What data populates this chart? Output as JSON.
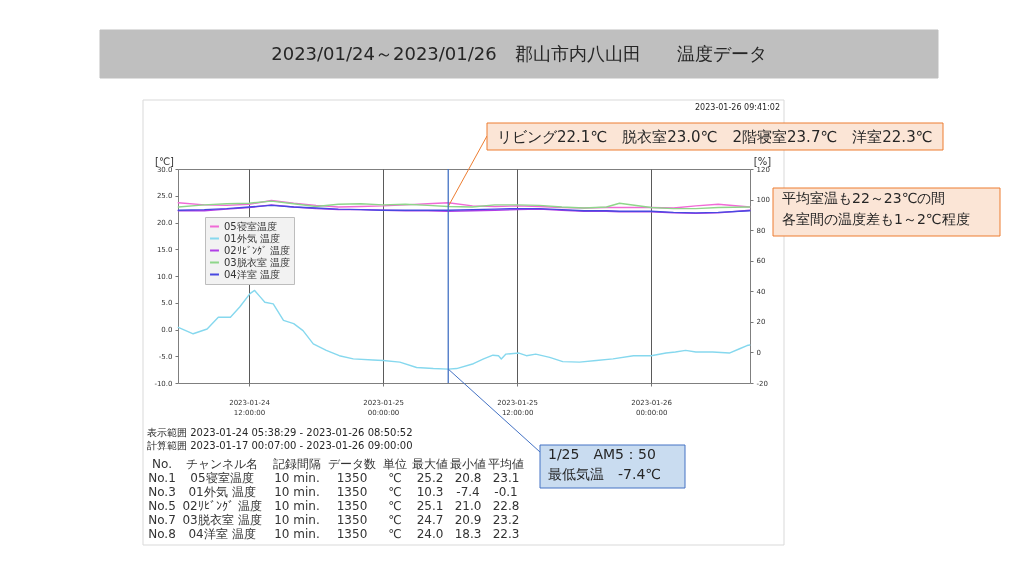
{
  "chart_data": {
    "type": "line",
    "title": "2023/01/24～2023/01/26　郡山市内八山田　　温度データ",
    "ylabel": "[℃]",
    "y2label": "[%]",
    "x": [
      "2023-01-24T05:40",
      "2023-01-24T08:00",
      "2023-01-24T10:00",
      "2023-01-24T12:00",
      "2023-01-24T14:00",
      "2023-01-24T16:00",
      "2023-01-24T18:00",
      "2023-01-24T20:00",
      "2023-01-24T22:00",
      "2023-01-25T00:00",
      "2023-01-25T02:00",
      "2023-01-25T04:00",
      "2023-01-25T05:50",
      "2023-01-25T08:00",
      "2023-01-25T10:00",
      "2023-01-25T12:00",
      "2023-01-25T14:00",
      "2023-01-25T16:00",
      "2023-01-25T18:00",
      "2023-01-25T20:00",
      "2023-01-25T21:10",
      "2023-01-26T00:00",
      "2023-01-26T02:00",
      "2023-01-26T04:00",
      "2023-01-26T06:00",
      "2023-01-26T08:50"
    ],
    "series": [
      {
        "name": "05寝室温度",
        "color": "#f06ad6",
        "values": [
          23.7,
          23.3,
          23.2,
          23.4,
          24.1,
          23.6,
          23.2,
          22.9,
          23.0,
          23.1,
          23.3,
          23.5,
          23.7,
          23.1,
          23.0,
          23.1,
          23.0,
          22.8,
          22.7,
          22.8,
          22.8,
          22.8,
          22.7,
          23.1,
          23.4,
          22.9
        ]
      },
      {
        "name": "01外気 温度",
        "color": "#86d8ee",
        "x": [
          "2023-01-24T05:40",
          "2023-01-24T07:00",
          "2023-01-24T08:15",
          "2023-01-24T09:15",
          "2023-01-24T10:20",
          "2023-01-24T11:10",
          "2023-01-24T12:05",
          "2023-01-24T12:30",
          "2023-01-24T13:00",
          "2023-01-24T13:25",
          "2023-01-24T14:10",
          "2023-01-24T15:05",
          "2023-01-24T16:00",
          "2023-01-24T16:50",
          "2023-01-24T17:45",
          "2023-01-24T18:55",
          "2023-01-24T20:05",
          "2023-01-24T21:20",
          "2023-01-24T23:05",
          "2023-01-25T00:00",
          "2023-01-25T01:30",
          "2023-01-25T03:00",
          "2023-01-25T04:30",
          "2023-01-25T05:50",
          "2023-01-25T06:35",
          "2023-01-25T08:05",
          "2023-01-25T09:00",
          "2023-01-25T09:50",
          "2023-01-25T10:20",
          "2023-01-25T10:35",
          "2023-01-25T11:00",
          "2023-01-25T12:10",
          "2023-01-25T12:50",
          "2023-01-25T13:40",
          "2023-01-25T14:55",
          "2023-01-25T16:05",
          "2023-01-25T17:35",
          "2023-01-25T19:05",
          "2023-01-25T20:35",
          "2023-01-25T22:25",
          "2023-01-26T00:00",
          "2023-01-26T01:20",
          "2023-01-26T02:10",
          "2023-01-26T03:05",
          "2023-01-26T04:00",
          "2023-01-26T05:30",
          "2023-01-26T07:00",
          "2023-01-26T07:55",
          "2023-01-26T08:35",
          "2023-01-26T08:50"
        ],
        "values": [
          0.4,
          -0.8,
          0.1,
          2.3,
          2.3,
          4.2,
          6.7,
          7.3,
          6.1,
          5.1,
          4.8,
          1.7,
          1.1,
          -0.2,
          -2.7,
          -3.9,
          -4.9,
          -5.5,
          -5.7,
          -5.8,
          -6.1,
          -7.1,
          -7.3,
          -7.4,
          -7.3,
          -6.4,
          -5.5,
          -4.8,
          -4.9,
          -5.5,
          -4.6,
          -4.4,
          -4.9,
          -4.6,
          -5.2,
          -6.0,
          -6.1,
          -5.8,
          -5.5,
          -4.9,
          -4.9,
          -4.4,
          -4.2,
          -3.9,
          -4.2,
          -4.2,
          -4.4,
          -3.6,
          -3.0,
          -2.9
        ]
      },
      {
        "name": "02ﾘﾋﾞﾝｸﾞ 温度",
        "color": "#b03ee6",
        "values": [
          22.2,
          22.2,
          22.5,
          22.8,
          23.3,
          22.9,
          22.6,
          22.4,
          22.4,
          22.3,
          22.2,
          22.2,
          22.1,
          22.2,
          22.3,
          22.4,
          22.5,
          22.3,
          22.1,
          22.1,
          22.0,
          22.0,
          21.8,
          21.7,
          21.8,
          22.3
        ]
      },
      {
        "name": "03脱衣室 温度",
        "color": "#8ed68a",
        "values": [
          22.9,
          23.3,
          23.5,
          23.6,
          24.0,
          23.5,
          23.0,
          23.4,
          23.5,
          23.3,
          23.4,
          23.2,
          23.0,
          22.9,
          23.3,
          23.3,
          23.2,
          22.9,
          22.7,
          22.9,
          23.6,
          22.8,
          22.6,
          22.6,
          22.8,
          22.9
        ]
      },
      {
        "name": "04洋室 温度",
        "color": "#4848e0",
        "values": [
          22.3,
          22.4,
          22.6,
          22.9,
          23.2,
          22.9,
          22.7,
          22.5,
          22.4,
          22.3,
          22.3,
          22.3,
          22.3,
          22.4,
          22.5,
          22.6,
          22.6,
          22.4,
          22.2,
          22.2,
          22.1,
          22.1,
          21.9,
          21.8,
          21.9,
          22.2
        ]
      }
    ],
    "xlim": [
      "2023-01-24T05:38:29",
      "2023-01-26T08:50:52"
    ],
    "xticks": [
      {
        "value": "2023-01-24T12:00",
        "label": "2023-01-24\n12:00:00"
      },
      {
        "value": "2023-01-25T00:00",
        "label": "2023-01-25\n00:00:00"
      },
      {
        "value": "2023-01-25T12:00",
        "label": "2023-01-25\n12:00:00"
      },
      {
        "value": "2023-01-26T00:00",
        "label": "2023-01-26\n00:00:00"
      }
    ],
    "ylim": [
      -10,
      30
    ],
    "yticks": [
      {
        "value": -10,
        "label": "-10.0"
      },
      {
        "value": -5,
        "label": "-5.0"
      },
      {
        "value": 0,
        "label": "0.0"
      },
      {
        "value": 5,
        "label": "5.0"
      },
      {
        "value": 10,
        "label": "10.0"
      },
      {
        "value": 15,
        "label": "15.0"
      },
      {
        "value": 20,
        "label": "20.0"
      },
      {
        "value": 25,
        "label": "25.0"
      },
      {
        "value": 30,
        "label": "30.0"
      }
    ],
    "y2lim": [
      -20,
      120
    ],
    "y2ticks": [
      -20,
      0,
      20,
      40,
      60,
      80,
      100,
      120
    ],
    "ref_lines": [
      {
        "axis": "x",
        "value": "2023-01-25T05:50",
        "color": "#4472c4"
      }
    ],
    "grid": "x",
    "legend": "top left",
    "line_style": "solid",
    "annotations": [
      "2023-01-26 09:41:02",
      "表示範囲 2023-01-24 05:38:29 - 2023-01-26 08:50:52",
      "計算範囲 2023-01-17 00:07:00 - 2023-01-26 09:00:00",
      {
        "text": "リビング22.1℃　脱衣室23.0℃　2階寝室23.7℃　洋室22.3℃",
        "x": "2023-01-25T05:50",
        "y": 23.0
      },
      "平均室温も22～23℃の間",
      "各室間の温度差も1～2℃程度",
      {
        "text": "1/25　AM5：50\n最低気温　-7.4℃",
        "x": "2023-01-25T05:50",
        "y": -7.4
      },
      "No.",
      "チャンネル名",
      "記録間隔",
      "データ数",
      "単位",
      "最大値",
      "最小値",
      "平均値",
      "No.1",
      "05寝室温度",
      "10 min.",
      "1350",
      "℃",
      "25.2",
      "20.8",
      "23.1",
      "No.3",
      "01外気 温度",
      "10 min.",
      "1350",
      "℃",
      "10.3",
      "-7.4",
      "-0.1",
      "No.5",
      "02ﾘﾋﾞﾝｸﾞ 温度",
      "10 min.",
      "1350",
      "℃",
      "25.1",
      "21.0",
      "22.8",
      "No.7",
      "03脱衣室 温度",
      "10 min.",
      "1350",
      "℃",
      "24.7",
      "20.9",
      "23.2",
      "No.8",
      "04洋室 温度",
      "10 min.",
      "1350",
      "℃",
      "24.0",
      "18.3",
      "22.3"
    ]
  }
}
